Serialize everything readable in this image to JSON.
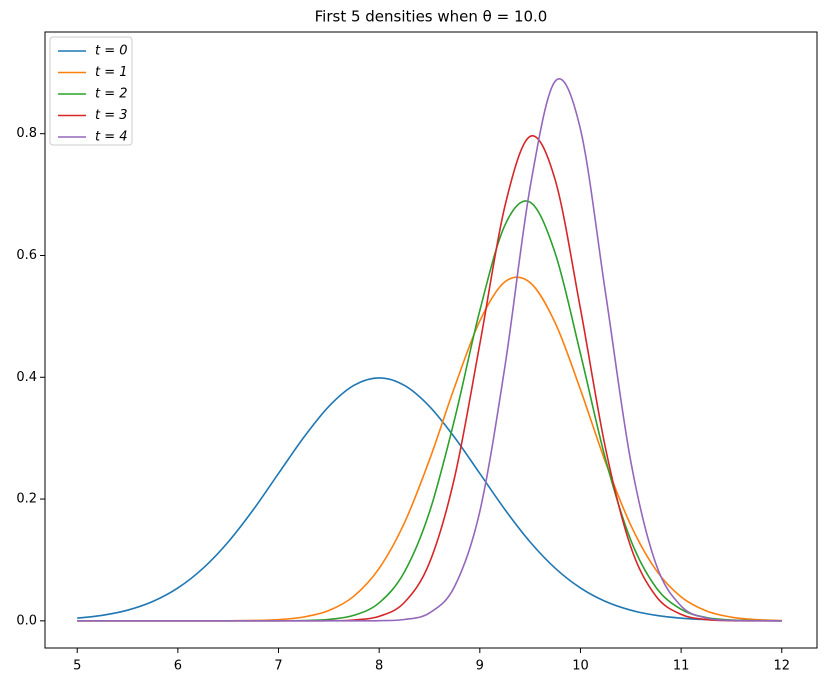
{
  "chart_data": {
    "type": "line",
    "title": "First 5 densities when θ = 10.0",
    "x": [
      5,
      5.25,
      5.5,
      5.75,
      6,
      6.25,
      6.5,
      6.75,
      7,
      7.25,
      7.5,
      7.75,
      8,
      8.25,
      8.5,
      8.75,
      9,
      9.25,
      9.5,
      9.75,
      10,
      10.25,
      10.5,
      10.75,
      11,
      11.25,
      11.5,
      11.75,
      12
    ],
    "series": [
      {
        "name": "t = 0",
        "color": "#1f77b4",
        "values": [
          0.0044,
          0.0091,
          0.0175,
          0.0317,
          0.054,
          0.0863,
          0.1295,
          0.1826,
          0.242,
          0.3011,
          0.3521,
          0.3867,
          0.3989,
          0.3867,
          0.3521,
          0.3011,
          0.242,
          0.1826,
          0.1295,
          0.0863,
          0.054,
          0.0317,
          0.0175,
          0.0091,
          0.0044,
          0.002,
          0.0009,
          0.0004,
          0.0001
        ]
      },
      {
        "name": "t = 1",
        "color": "#ff7f0e",
        "values": [
          0,
          0,
          0,
          0,
          0,
          0,
          0.0001,
          0.0006,
          0.002,
          0.0063,
          0.0169,
          0.0407,
          0.0862,
          0.1606,
          0.2644,
          0.3842,
          0.4925,
          0.5569,
          0.5555,
          0.4889,
          0.3796,
          0.2598,
          0.1571,
          0.0836,
          0.0393,
          0.0163,
          0.006,
          0.0019,
          0.0005
        ]
      },
      {
        "name": "t = 2",
        "color": "#2ca02c",
        "values": [
          0,
          0,
          0,
          0,
          0,
          0,
          0,
          0,
          0.0001,
          0.0005,
          0.0023,
          0.0091,
          0.0296,
          0.08,
          0.1787,
          0.3315,
          0.5096,
          0.65,
          0.6875,
          0.6031,
          0.4387,
          0.2648,
          0.1325,
          0.055,
          0.0189,
          0.0054,
          0.0013,
          0.0003,
          0.0001
        ]
      },
      {
        "name": "t = 3",
        "color": "#d62728",
        "values": [
          0,
          0,
          0,
          0,
          0,
          0,
          0,
          0,
          0,
          0,
          0.0002,
          0.0014,
          0.0074,
          0.0301,
          0.0955,
          0.2361,
          0.4544,
          0.6815,
          0.7956,
          0.7234,
          0.5124,
          0.2826,
          0.1214,
          0.0406,
          0.0106,
          0.0021,
          0.0003,
          0,
          0
        ]
      },
      {
        "name": "t = 4",
        "color": "#9467bd",
        "values": [
          0,
          0,
          0,
          0,
          0,
          0,
          0,
          0,
          0,
          0,
          0,
          0,
          0.0003,
          0.0022,
          0.013,
          0.0566,
          0.1797,
          0.4184,
          0.7123,
          0.8864,
          0.8072,
          0.5373,
          0.2618,
          0.0933,
          0.0243,
          0.0046,
          0.0006,
          0.0001,
          0
        ]
      }
    ],
    "xlim": [
      4.68,
      12.35
    ],
    "ylim": [
      -0.0446,
      0.967
    ],
    "xticks": [
      5,
      6,
      7,
      8,
      9,
      10,
      11,
      12
    ],
    "yticks": [
      {
        "value": 0,
        "label": "0.0"
      },
      {
        "value": 0.2,
        "label": "0.2"
      },
      {
        "value": 0.4,
        "label": "0.4"
      },
      {
        "value": 0.6,
        "label": "0.6"
      },
      {
        "value": 0.8,
        "label": "0.8"
      }
    ],
    "legend": "upper left"
  }
}
